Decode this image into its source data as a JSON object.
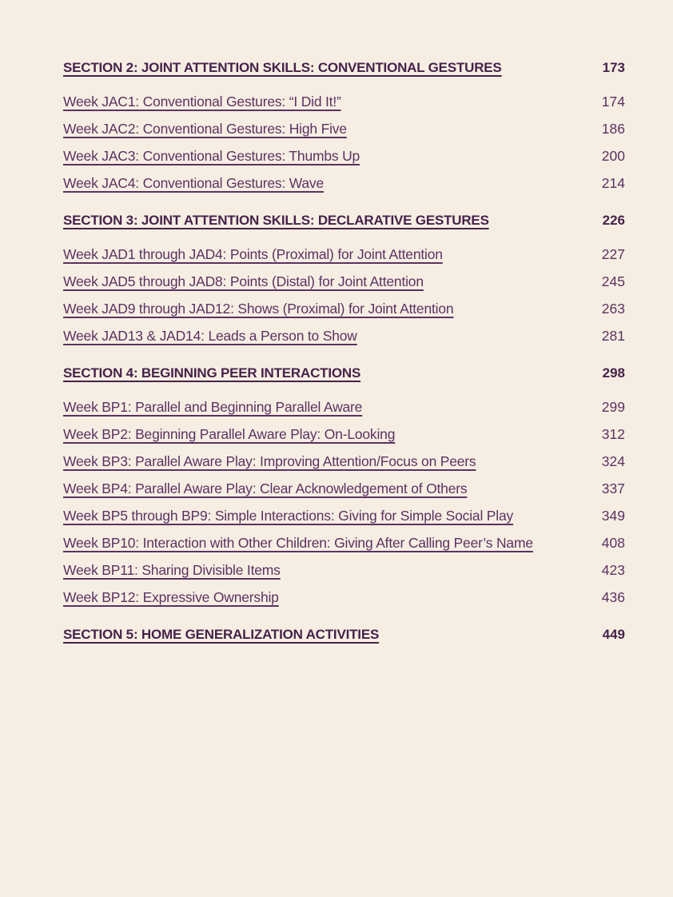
{
  "page": {
    "background": "#f7eee3",
    "section_title_color": "#45224a",
    "entry_color": "#5a3260"
  },
  "toc": {
    "sections": [
      {
        "title": "SECTION 2: JOINT ATTENTION SKILLS: CONVENTIONAL GESTURES",
        "page": "173",
        "entries": [
          {
            "label": "Week JAC1: Conventional Gestures: “I Did It!”",
            "page": "174"
          },
          {
            "label": "Week JAC2: Conventional Gestures: High Five",
            "page": "186"
          },
          {
            "label": "Week JAC3: Conventional Gestures: Thumbs Up",
            "page": "200"
          },
          {
            "label": "Week JAC4: Conventional Gestures: Wave",
            "page": "214"
          }
        ]
      },
      {
        "title": "SECTION 3: JOINT ATTENTION SKILLS: DECLARATIVE GESTURES",
        "page": "226",
        "entries": [
          {
            "label": "Week JAD1 through JAD4: Points (Proximal) for Joint Attention",
            "page": "227"
          },
          {
            "label": "Week JAD5 through JAD8: Points (Distal) for Joint Attention",
            "page": "245"
          },
          {
            "label": "Week JAD9 through JAD12: Shows (Proximal) for Joint Attention",
            "page": "263"
          },
          {
            "label": "Week JAD13 & JAD14: Leads a Person to Show",
            "page": "281"
          }
        ]
      },
      {
        "title": "SECTION 4: BEGINNING PEER INTERACTIONS",
        "page": "298",
        "entries": [
          {
            "label": "Week BP1: Parallel and Beginning Parallel Aware",
            "page": "299"
          },
          {
            "label": "Week BP2: Beginning Parallel Aware Play: On-Looking",
            "page": "312"
          },
          {
            "label": "Week BP3: Parallel Aware Play: Improving Attention/Focus on Peers",
            "page": "324"
          },
          {
            "label": "Week BP4: Parallel Aware Play: Clear Acknowledgement of Others",
            "page": "337"
          },
          {
            "label": "Week BP5 through BP9: Simple Interactions: Giving for Simple Social Play",
            "page": "349"
          },
          {
            "label": "Week BP10: Interaction with Other Children: Giving After Calling Peer’s Name",
            "page": "408"
          },
          {
            "label": "Week BP11: Sharing Divisible Items",
            "page": "423"
          },
          {
            "label": "Week BP12: Expressive Ownership",
            "page": "436"
          }
        ]
      },
      {
        "title": "SECTION 5: HOME GENERALIZATION ACTIVITIES",
        "page": "449",
        "entries": []
      }
    ]
  }
}
